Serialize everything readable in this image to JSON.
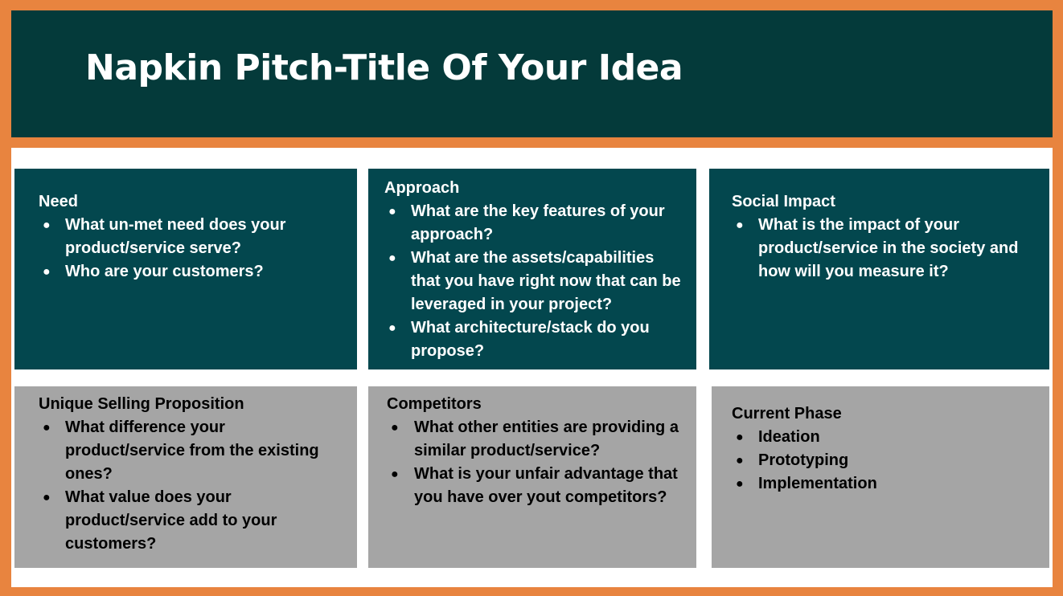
{
  "title": "Napkin Pitch-Title Of Your Idea",
  "colors": {
    "frame": "#e8843f",
    "header_bg": "#043a3a",
    "dark_card": "#03474e",
    "light_card": "#a5a5a5"
  },
  "cards": {
    "need": {
      "heading": "Need",
      "items": [
        "What un-met need does your product/service serve?",
        "Who are your customers?"
      ]
    },
    "approach": {
      "heading": "Approach",
      "items": [
        "What are the key features of your approach?",
        "What are the assets/capabilities that you have right now that can be leveraged in your project?",
        "What architecture/stack do you propose?"
      ]
    },
    "social_impact": {
      "heading": "Social Impact",
      "items": [
        "What is the impact of your product/service in the society and how will you measure it?"
      ]
    },
    "usp": {
      "heading": "Unique Selling Proposition",
      "items": [
        "What difference your product/service from the existing ones?",
        "What value does your product/service add to your customers?"
      ]
    },
    "competitors": {
      "heading": "Competitors",
      "items": [
        "What other entities are providing a similar product/service?",
        "What is your unfair advantage that you have over yout competitors?"
      ]
    },
    "current_phase": {
      "heading": "Current Phase",
      "items": [
        "Ideation",
        "Prototyping",
        "Implementation"
      ]
    }
  }
}
